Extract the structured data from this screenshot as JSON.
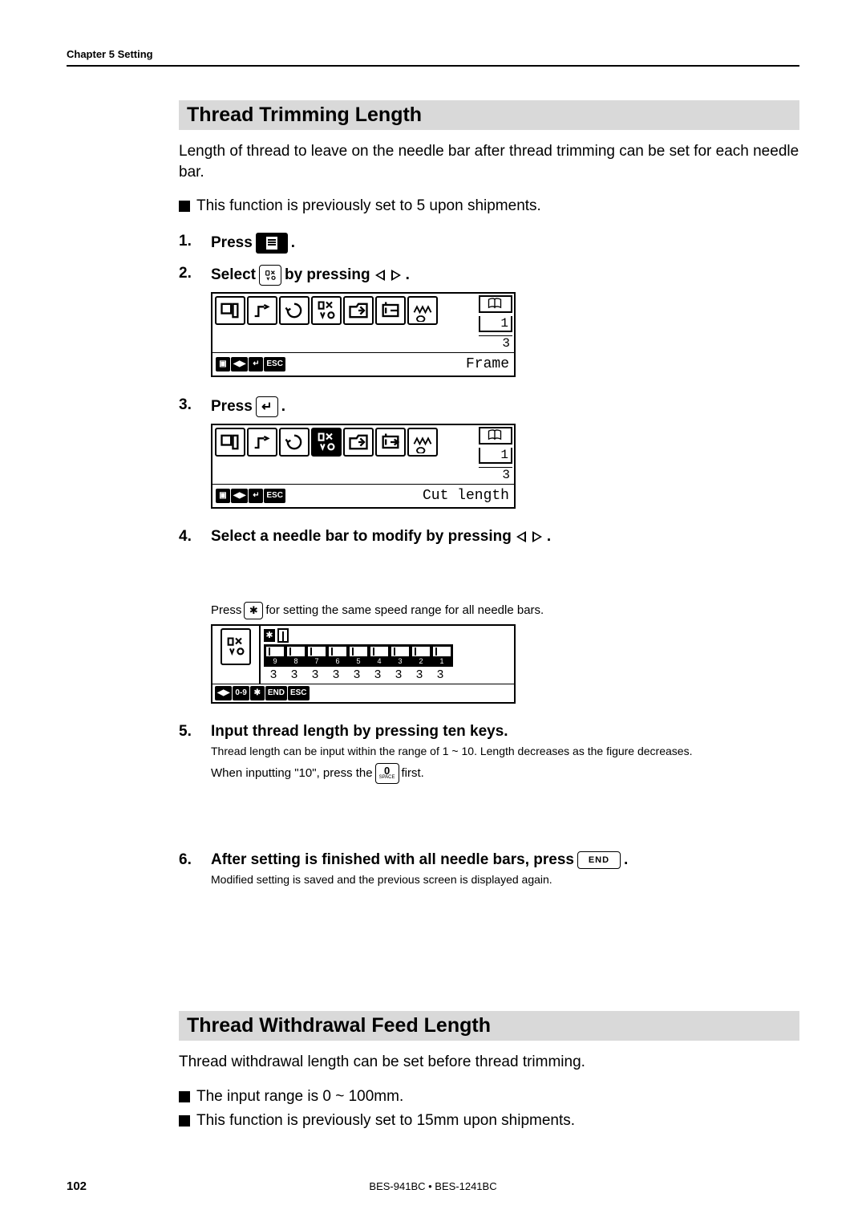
{
  "chapter_header": "Chapter 5 Setting",
  "section1": {
    "title": "Thread Trimming Length",
    "intro": "Length of thread to leave on the needle bar after thread trimming can be set for each needle bar.",
    "note1": "This function is previously set to 5 upon shipments.",
    "steps": {
      "s1": {
        "num": "1.",
        "a": "Press",
        "b": "."
      },
      "s2": {
        "num": "2.",
        "a": "Select",
        "b": "by pressing",
        "c": "."
      },
      "s3": {
        "num": "3.",
        "a": "Press",
        "b": "."
      },
      "s4": {
        "num": "4.",
        "a": "Select a needle bar to modify by pressing",
        "b": "."
      },
      "s5": {
        "num": "5.",
        "a": "Input thread length by pressing ten keys.",
        "sub1": "Thread length can be input within the range of 1 ~ 10.  Length decreases as the figure decreases.",
        "sub2a": "When inputting \"10\", press the",
        "sub2b": "first."
      },
      "s6": {
        "num": "6.",
        "a": "After setting is finished with all needle bars, press",
        "b": ".",
        "sub": "Modified setting is saved and the previous screen is displayed again."
      }
    },
    "press_star_text_a": "Press",
    "press_star_text_b": "for setting the same speed range for all needle bars.",
    "lcd1": {
      "label": "Frame",
      "top_num": "1",
      "bot_num": "3"
    },
    "lcd2": {
      "label": "Cut length",
      "top_num": "1",
      "bot_num": "3"
    },
    "needle_values": [
      "3",
      "3",
      "3",
      "3",
      "3",
      "3",
      "3",
      "3",
      "3"
    ],
    "needle_nums": [
      "9",
      "8",
      "7",
      "6",
      "5",
      "4",
      "3",
      "2",
      "1"
    ],
    "legend_items_a": [
      "◀▶",
      "0-9",
      "✱",
      "END",
      "ESC"
    ],
    "legend_items_b": [
      "▣",
      "◀▶",
      "↵",
      "ESC"
    ]
  },
  "section2": {
    "title": "Thread Withdrawal Feed Length",
    "intro": "Thread withdrawal length can be set before thread trimming.",
    "note1": "The input range is 0 ~ 100mm.",
    "note2": "This function is previously set to 15mm upon shipments."
  },
  "keys": {
    "star": "✱",
    "end": "END",
    "zero": "0",
    "zero_sub": "SPACE"
  },
  "footer": {
    "page": "102",
    "model": "BES-941BC • BES-1241BC"
  }
}
